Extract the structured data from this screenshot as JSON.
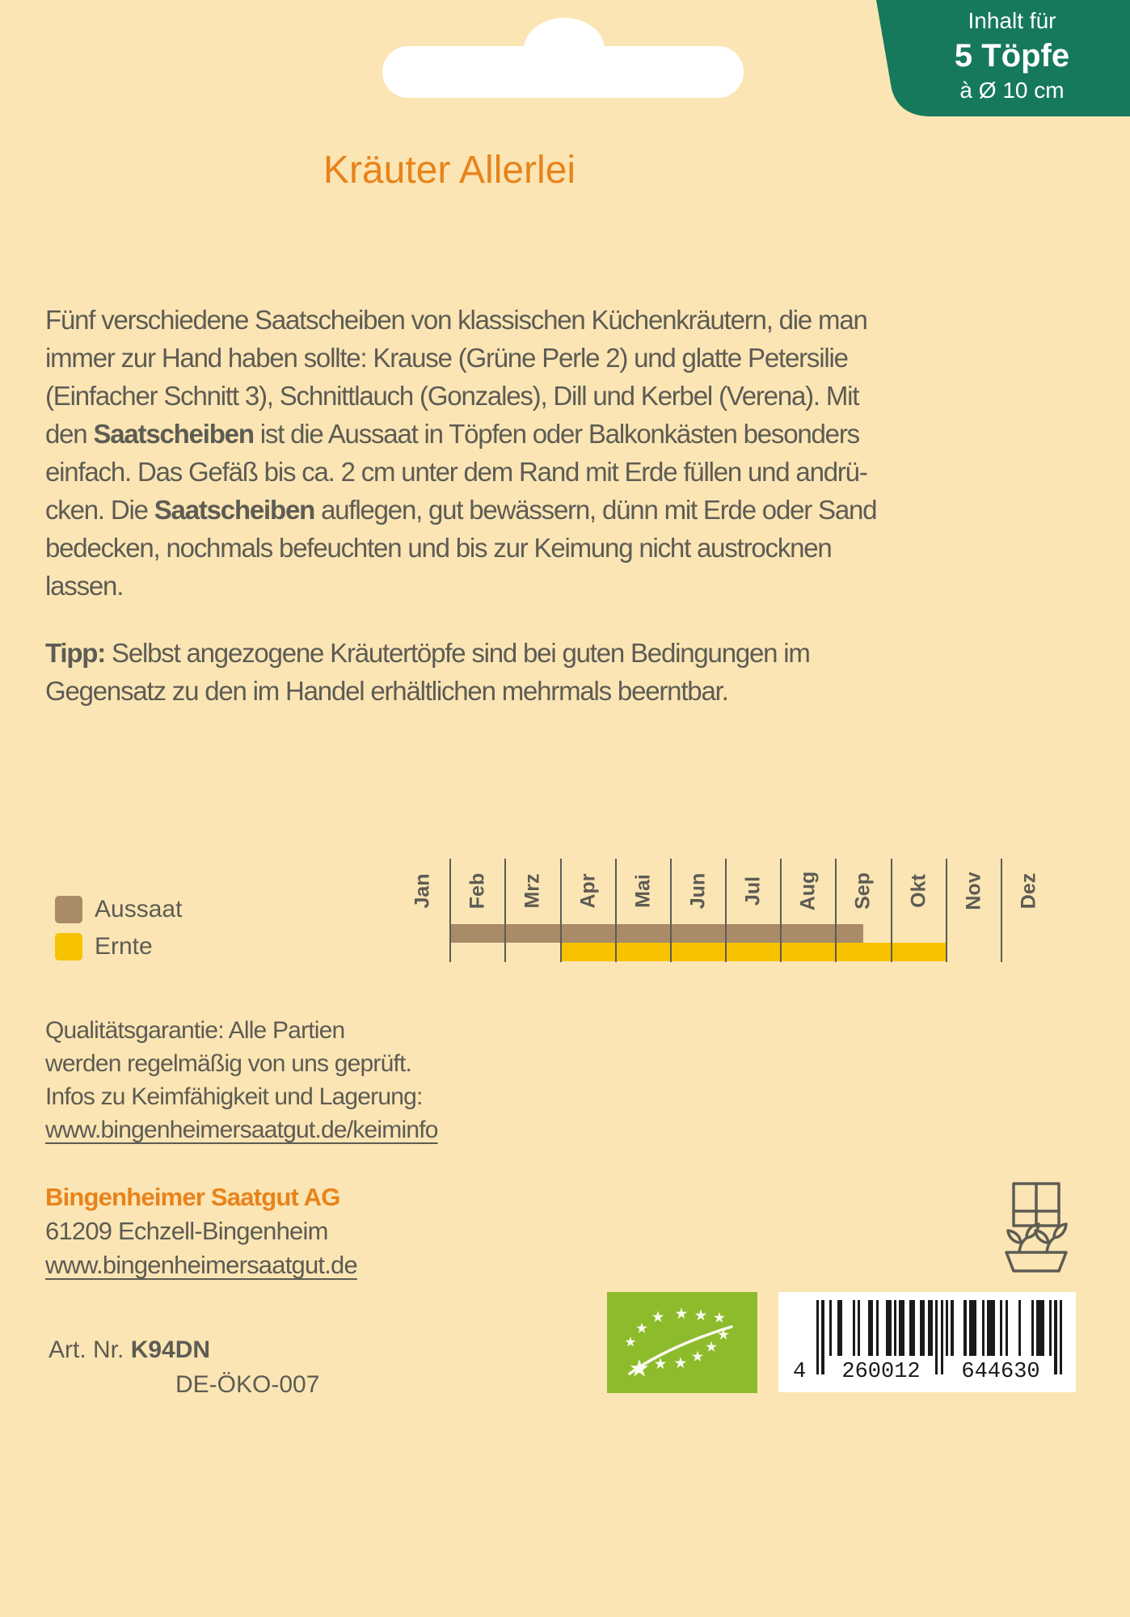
{
  "colors": {
    "background": "#FBE5B4",
    "accent_orange": "#E8831B",
    "badge_green": "#16795C",
    "ink_gray": "#5D5C54",
    "aussaat_brown": "#A98B68",
    "ernte_yellow": "#F7C300",
    "eu_logo_green": "#8DBB2C"
  },
  "badge": {
    "lines": [
      "Inhalt für",
      "5 Töpfe",
      "à Ø 10 cm"
    ]
  },
  "title": {
    "text": "Kräuter Allerlei"
  },
  "description": {
    "lines": [
      [
        {
          "t": "Fünf verschiedene Saatscheiben von klassischen Küchenkräutern, die man",
          "b": false
        }
      ],
      [
        {
          "t": "immer zur Hand haben sollte: Krause (Grüne Perle 2) und glatte Petersilie",
          "b": false
        }
      ],
      [
        {
          "t": "(Einfacher Schnitt 3), Schnittlauch (Gonzales), Dill und Kerbel (Verena). Mit",
          "b": false
        }
      ],
      [
        {
          "t": "den ",
          "b": false
        },
        {
          "t": "Saatscheiben",
          "b": true
        },
        {
          "t": " ist die Aussaat in Töpfen oder Balkonkästen besonders",
          "b": false
        }
      ],
      [
        {
          "t": "einfach. Das Gefäß bis ca. 2 cm unter dem Rand mit Erde füllen und andrü-",
          "b": false
        }
      ],
      [
        {
          "t": "cken. Die ",
          "b": false
        },
        {
          "t": "Saatscheiben",
          "b": true
        },
        {
          "t": " auflegen, gut bewässern, dünn mit Erde oder Sand",
          "b": false
        }
      ],
      [
        {
          "t": "bedecken, nochmals befeuchten und bis zur Keimung nicht austrocknen",
          "b": false
        }
      ],
      [
        {
          "t": "lassen.",
          "b": false
        }
      ]
    ]
  },
  "tip": {
    "lines": [
      [
        {
          "t": "Tipp:",
          "b": true
        },
        {
          "t": " Selbst angezogene Kräutertöpfe sind bei guten Bedingungen im",
          "b": false
        }
      ],
      [
        {
          "t": "Gegensatz zu den im Handel erhältlichen mehrmals beerntbar.",
          "b": false
        }
      ]
    ]
  },
  "chart_data": {
    "type": "bar",
    "subtype": "month-span-calendar",
    "categories": [
      "Jan",
      "Feb",
      "Mrz",
      "Apr",
      "Mai",
      "Jun",
      "Jul",
      "Aug",
      "Sep",
      "Okt",
      "Nov",
      "Dez"
    ],
    "series": [
      {
        "name": "Aussaat",
        "color": "#A98B68",
        "start": 1.0,
        "end": 8.5,
        "span_label": "Feb bis Mitte Sep"
      },
      {
        "name": "Ernte",
        "color": "#F7C300",
        "start": 3.0,
        "end": 10.0,
        "span_label": "Apr bis Ende Okt"
      }
    ],
    "legend_position": "left",
    "grid": "vertical-month-separators",
    "xlabel": "",
    "ylabel": ""
  },
  "quality": {
    "lines": [
      "Qualitätsgarantie: Alle Partien",
      "werden regelmäßig von uns geprüft.",
      "Infos zu Keimfähigkeit und Lagerung:"
    ],
    "link": "www.bingenheimersaatgut.de/keiminfo"
  },
  "company": {
    "name": "Bingenheimer Saatgut AG",
    "address": "61209 Echzell-Bingenheim",
    "website": "www.bingenheimersaatgut.de"
  },
  "footer": {
    "art_label": "Art. Nr. ",
    "art_number": "K94DN",
    "eco_code": "DE-ÖKO-007",
    "barcode_digits": "4 260012 644630"
  }
}
